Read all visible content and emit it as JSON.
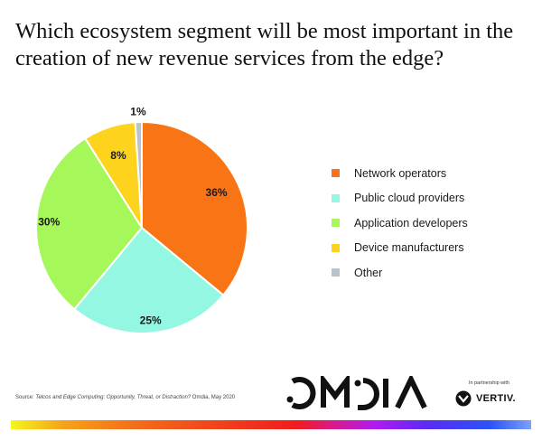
{
  "chart_data": {
    "type": "pie",
    "title": "Which ecosystem segment will be most important in the creation of new revenue services from the edge?",
    "unit": "%",
    "start_angle": "12 o'clock",
    "direction": "clockwise",
    "slices": [
      {
        "label": "Network operators",
        "value": 36,
        "display": "36%",
        "color": "#f97415"
      },
      {
        "label": "Public cloud providers",
        "value": 25,
        "display": "25%",
        "color": "#94f7e2"
      },
      {
        "label": "Application developers",
        "value": 30,
        "display": "30%",
        "color": "#a6f75a"
      },
      {
        "label": "Device manufacturers",
        "value": 8,
        "display": "8%",
        "color": "#fdd31e"
      },
      {
        "label": "Other",
        "value": 1,
        "display": "1%",
        "color": "#b9c3c9"
      }
    ],
    "legend_position": "right"
  },
  "footer": {
    "source_prefix": "Source: ",
    "source_title": "Telcos and Edge Computing: Opportunity, Threat, or Distraction?",
    "source_suffix": " Omdia, May 2020",
    "brand": "OMDIA",
    "partner_text": "In partnership with",
    "partner_brand": "VERTIV."
  }
}
